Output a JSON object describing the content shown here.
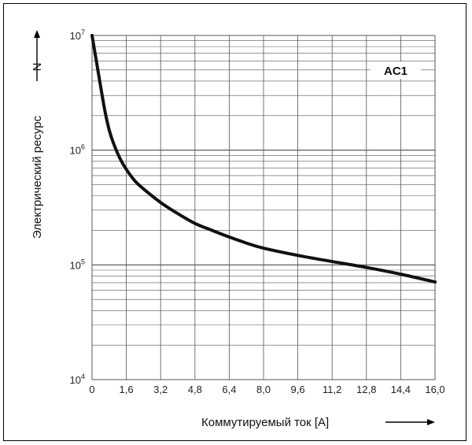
{
  "chart_data": {
    "type": "line",
    "xlabel": "Коммутируемый ток [A]",
    "ylabel": "Электрический ресурс",
    "ysymbol": "N",
    "yscale": "log",
    "xlim": [
      0,
      16
    ],
    "ylim": [
      10000,
      10000000
    ],
    "x_ticks": [
      0,
      1.6,
      3.2,
      4.8,
      6.4,
      8.0,
      9.6,
      11.2,
      12.8,
      14.4,
      16.0
    ],
    "x_tick_labels": [
      "0",
      "1,6",
      "3,2",
      "4,8",
      "6,4",
      "8,0",
      "9,6",
      "11,2",
      "12,8",
      "14,4",
      "16,0"
    ],
    "y_ticks": [
      {
        "base": "10",
        "exp": "4",
        "value": 10000
      },
      {
        "base": "10",
        "exp": "5",
        "value": 100000
      },
      {
        "base": "10",
        "exp": "6",
        "value": 1000000
      },
      {
        "base": "10",
        "exp": "7",
        "value": 10000000
      }
    ],
    "annotation": "AC1",
    "grid": true,
    "series": [
      {
        "x": [
          0,
          0.2,
          0.4,
          0.6,
          0.8,
          1.0,
          1.3,
          1.6,
          2.0,
          2.4,
          3.2,
          4.0,
          4.8,
          5.6,
          6.4,
          7.2,
          8.0,
          9.6,
          11.2,
          12.8,
          14.4,
          16.0
        ],
        "y": [
          10000000,
          6000000,
          3600000,
          2200000,
          1500000,
          1150000,
          850000,
          680000,
          540000,
          460000,
          350000,
          280000,
          230000,
          200000,
          175000,
          155000,
          140000,
          121000,
          107000,
          95000,
          83000,
          71000
        ]
      }
    ],
    "colors": {
      "line": "#111111",
      "grid": "#555555"
    }
  }
}
